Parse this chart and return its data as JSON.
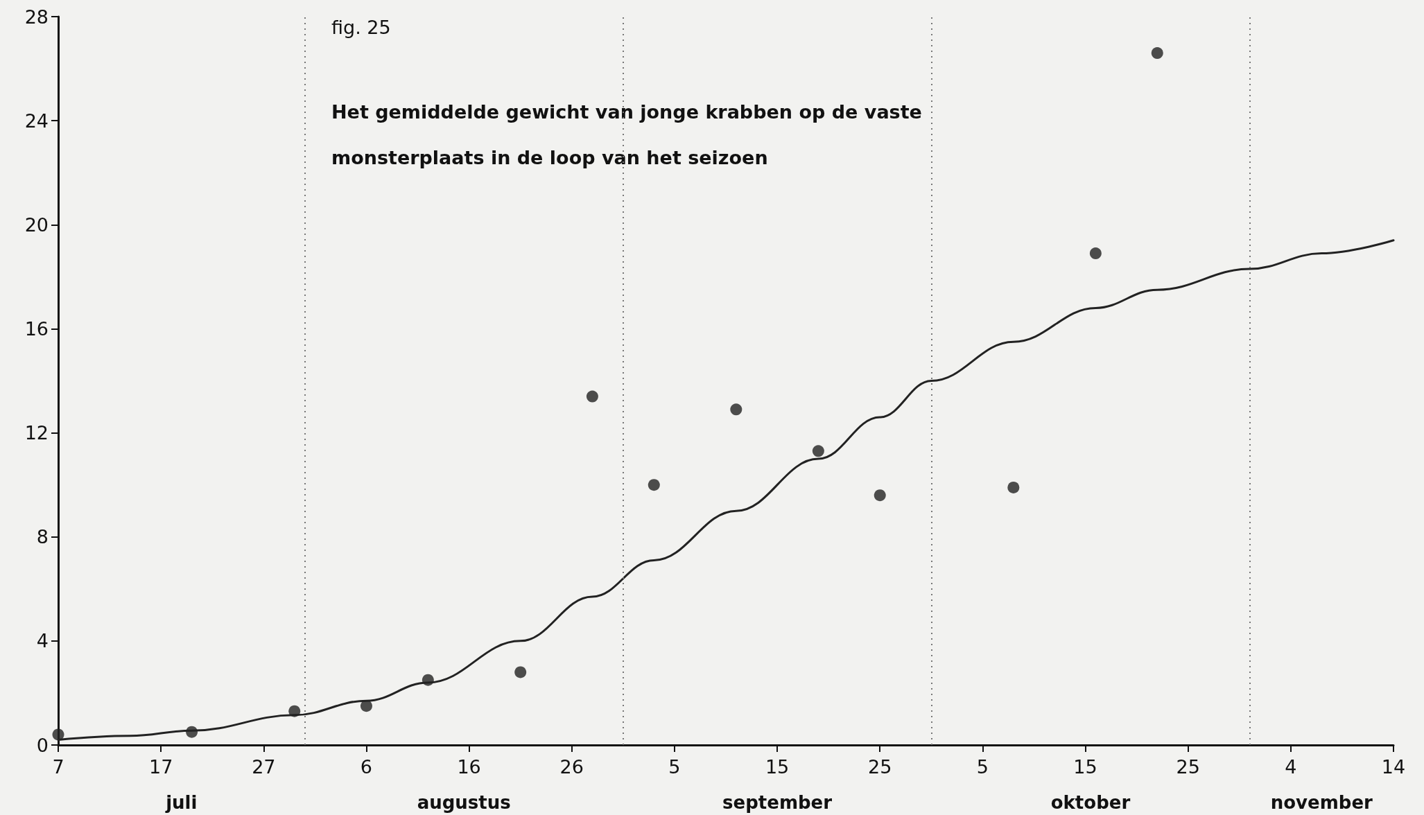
{
  "chart_data": {
    "type": "scatter",
    "title": "fig. 25",
    "subtitle": "Het gemiddelde gewicht van jonge krabben op de vaste monsterplaats in de loop van het seizoen",
    "xlim": [
      "--07-07",
      "--11-14"
    ],
    "xticks": [
      {
        "value": "--07-07",
        "label": "7"
      },
      {
        "value": "--07-17",
        "label": "17"
      },
      {
        "value": "--07-27",
        "label": "27"
      },
      {
        "value": "--08-06",
        "label": "6"
      },
      {
        "value": "--08-16",
        "label": "16"
      },
      {
        "value": "--08-26",
        "label": "26"
      },
      {
        "value": "--09-05",
        "label": "5"
      },
      {
        "value": "--09-15",
        "label": "15"
      },
      {
        "value": "--09-25",
        "label": "25"
      },
      {
        "value": "--10-05",
        "label": "5"
      },
      {
        "value": "--10-15",
        "label": "15"
      },
      {
        "value": "--10-25",
        "label": "25"
      },
      {
        "value": "--11-04",
        "label": "4"
      },
      {
        "value": "--11-14",
        "label": "14"
      }
    ],
    "ylim": [
      0,
      28
    ],
    "yticks": [
      0,
      4,
      8,
      12,
      16,
      20,
      24,
      28
    ],
    "grid": false,
    "series": [
      {
        "marker": "circle",
        "color": "#222222",
        "x": [
          "--07-07",
          "--07-20",
          "--07-30",
          "--08-06",
          "--08-12",
          "--08-21",
          "--08-28",
          "--09-03",
          "--09-11",
          "--09-19",
          "--09-25",
          "--10-08",
          "--10-16",
          "--10-22"
        ],
        "values": [
          0.4,
          0.5,
          1.3,
          1.5,
          2.5,
          2.8,
          13.4,
          10.0,
          12.9,
          11.3,
          9.6,
          9.9,
          18.9,
          26.6
        ]
      },
      {
        "type": "line",
        "marker": "none",
        "line_style": "solid",
        "color": "#222222",
        "x": [
          "--07-07",
          "--07-14",
          "--07-20",
          "--07-30",
          "--08-06",
          "--08-12",
          "--08-21",
          "--08-28",
          "--09-03",
          "--09-11",
          "--09-19",
          "--09-25",
          "--09-30",
          "--10-08",
          "--10-16",
          "--10-22",
          "--10-31",
          "--11-07",
          "--11-14"
        ],
        "values": [
          0.2,
          0.35,
          0.55,
          1.15,
          1.7,
          2.4,
          4.0,
          5.7,
          7.1,
          9.0,
          11.0,
          12.6,
          14.0,
          15.5,
          16.8,
          17.5,
          18.3,
          18.9,
          19.4
        ]
      }
    ],
    "ref_lines": [
      {
        "axis": "x",
        "value": "--07-31",
        "line_style": "dotted"
      },
      {
        "axis": "x",
        "value": "--08-31",
        "line_style": "dotted"
      },
      {
        "axis": "x",
        "value": "--09-30",
        "line_style": "dotted"
      },
      {
        "axis": "x",
        "value": "--10-31",
        "line_style": "dotted"
      }
    ],
    "annotations": [
      "juli",
      "augustus",
      "september",
      "oktober",
      "november"
    ]
  }
}
